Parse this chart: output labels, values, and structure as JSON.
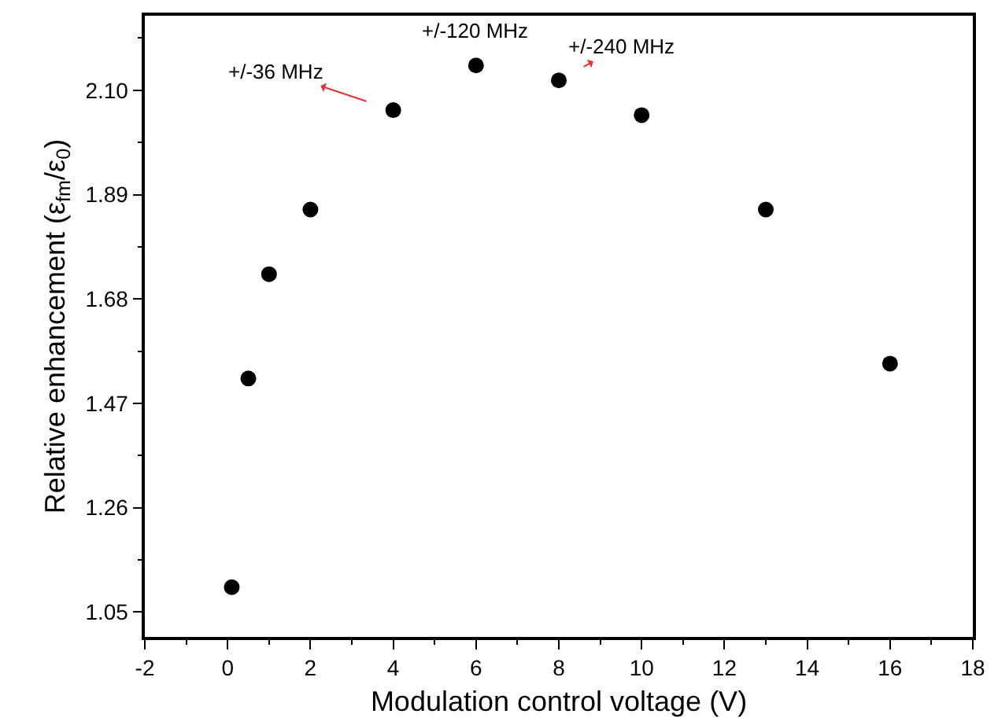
{
  "chart_data": {
    "type": "scatter",
    "xlabel": "Modulation control voltage (V)",
    "ylabel": "Relative enhancement (ε$_{fm}$/ε$_{0}$)",
    "x": [
      0.1,
      0.5,
      1,
      2,
      4,
      6,
      8,
      10,
      13,
      16
    ],
    "series": [
      {
        "color": "#000000",
        "values": [
          1.1,
          1.52,
          1.73,
          1.86,
          2.06,
          2.15,
          2.12,
          2.05,
          1.86,
          1.55
        ]
      }
    ],
    "xlim": [
      -2,
      18
    ],
    "xticks": [
      -2,
      0,
      2,
      4,
      6,
      8,
      10,
      12,
      14,
      16,
      18
    ],
    "ylim": [
      1.0,
      2.25
    ],
    "yticks": [
      {
        "value": 1.05,
        "label": "1.05"
      },
      {
        "value": 1.26,
        "label": "1.26"
      },
      {
        "value": 1.47,
        "label": "1.47"
      },
      {
        "value": 1.68,
        "label": "1.68"
      },
      {
        "value": 1.89,
        "label": "1.89"
      },
      {
        "value": 2.1,
        "label": "2.10"
      }
    ],
    "marker": "circle",
    "annotations": [
      {
        "text": "+/-36 MHz",
        "x": 4,
        "y": 2.06
      },
      {
        "text": "+/-120 MHz",
        "x": 6,
        "y": 2.15
      },
      {
        "text": "+/-240 MHz",
        "x": 8,
        "y": 2.12
      }
    ]
  }
}
